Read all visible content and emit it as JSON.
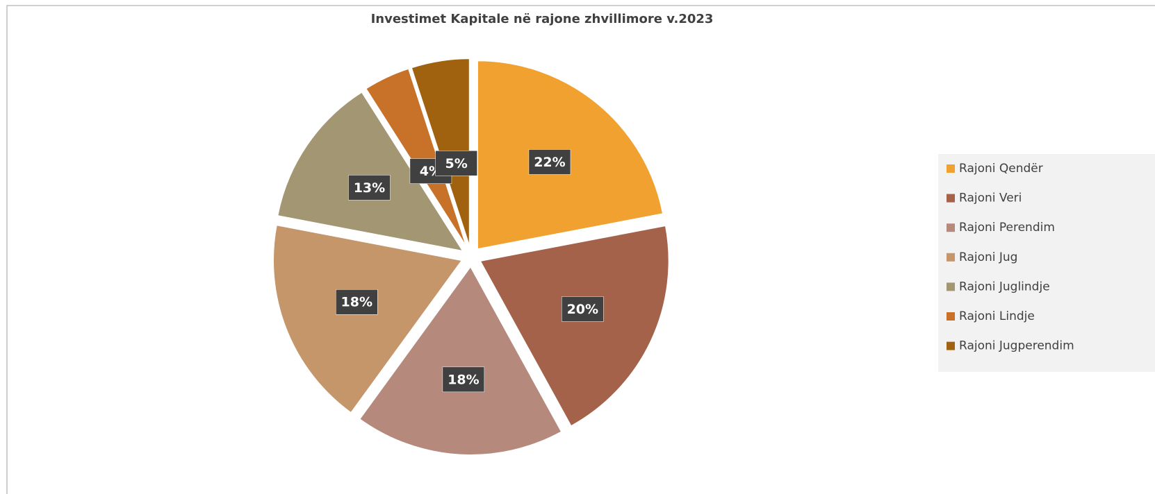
{
  "chart_data": {
    "type": "pie",
    "title": "Investimet Kapitale në rajone zhvillimore v.2023",
    "categories": [
      "Rajoni Qendër",
      "Rajoni Veri",
      "Rajoni Perendim",
      "Rajoni Jug",
      "Rajoni Juglindje",
      "Rajoni Lindje",
      "Rajoni Jugperendim"
    ],
    "values": [
      22,
      20,
      18,
      18,
      13,
      4,
      5
    ],
    "value_labels": [
      "22%",
      "20%",
      "18%",
      "18%",
      "13%",
      "4%",
      "5%"
    ],
    "colors": [
      "#f0a130",
      "#a5624b",
      "#b58a7d",
      "#c4966a",
      "#a39673",
      "#c87229",
      "#a0620f"
    ],
    "legend": "right"
  }
}
